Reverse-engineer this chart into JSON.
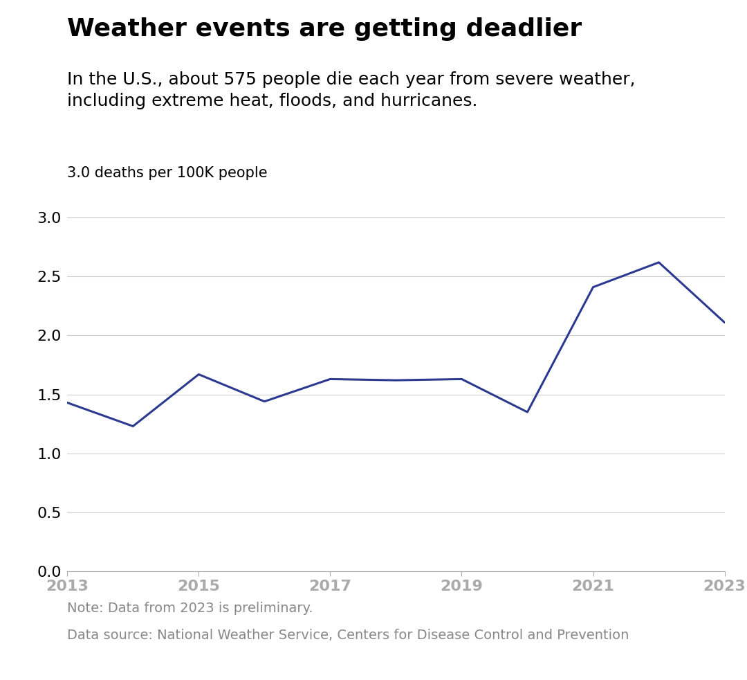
{
  "title": "Weather events are getting deadlier",
  "subtitle": "In the U.S., about 575 people die each year from severe weather,\nincluding extreme heat, floods, and hurricanes.",
  "ylabel": "3.0 deaths per 100K people",
  "note": "Note: Data from 2023 is preliminary.",
  "source": "Data source: National Weather Service, Centers for Disease Control and Prevention",
  "years": [
    2013,
    2014,
    2015,
    2016,
    2017,
    2018,
    2019,
    2020,
    2021,
    2022,
    2023
  ],
  "values": [
    1.43,
    1.23,
    1.67,
    1.44,
    1.63,
    1.62,
    1.63,
    1.35,
    2.41,
    2.62,
    2.11
  ],
  "line_color": "#2b3990",
  "line_width": 2.2,
  "background_color": "#ffffff",
  "grid_color": "#cccccc",
  "text_color": "#000000",
  "note_color": "#888888",
  "xlim": [
    2013,
    2023
  ],
  "ylim": [
    0.0,
    3.0
  ],
  "yticks": [
    0.0,
    0.5,
    1.0,
    1.5,
    2.0,
    2.5,
    3.0
  ],
  "xticks": [
    2013,
    2015,
    2017,
    2019,
    2021,
    2023
  ],
  "title_fontsize": 26,
  "subtitle_fontsize": 18,
  "axis_fontsize": 16,
  "ylabel_fontsize": 15,
  "note_fontsize": 14
}
